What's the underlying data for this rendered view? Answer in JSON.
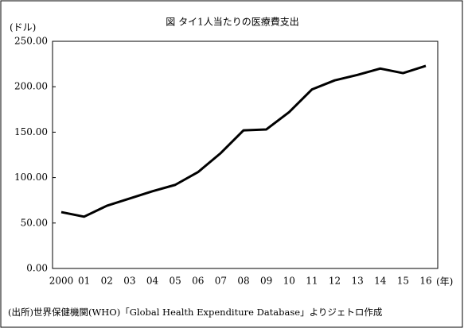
{
  "chart_data": {
    "type": "line",
    "title": "図 タイ1人当たりの医療費支出",
    "y_label": "(ドル)",
    "x_label": "(年)",
    "source": "(出所)世界保健機関(WHO)「Global Health Expenditure Database」よりジェトロ作成",
    "categories": [
      "2000",
      "01",
      "02",
      "03",
      "04",
      "05",
      "06",
      "07",
      "08",
      "09",
      "10",
      "11",
      "12",
      "13",
      "14",
      "15",
      "16"
    ],
    "values": [
      62,
      57,
      69,
      77,
      85,
      92,
      106,
      127,
      152,
      153,
      172,
      197,
      207,
      213,
      220,
      215,
      223
    ],
    "color": "#000000",
    "ylim": [
      0,
      250
    ],
    "yticks": [
      {
        "value": 0,
        "label": "0.00"
      },
      {
        "value": 50,
        "label": "50.00"
      },
      {
        "value": 100,
        "label": "100.00"
      },
      {
        "value": 150,
        "label": "150.00"
      },
      {
        "value": 200,
        "label": "200.00"
      },
      {
        "value": 250,
        "label": "250.00"
      }
    ],
    "grid": false
  }
}
